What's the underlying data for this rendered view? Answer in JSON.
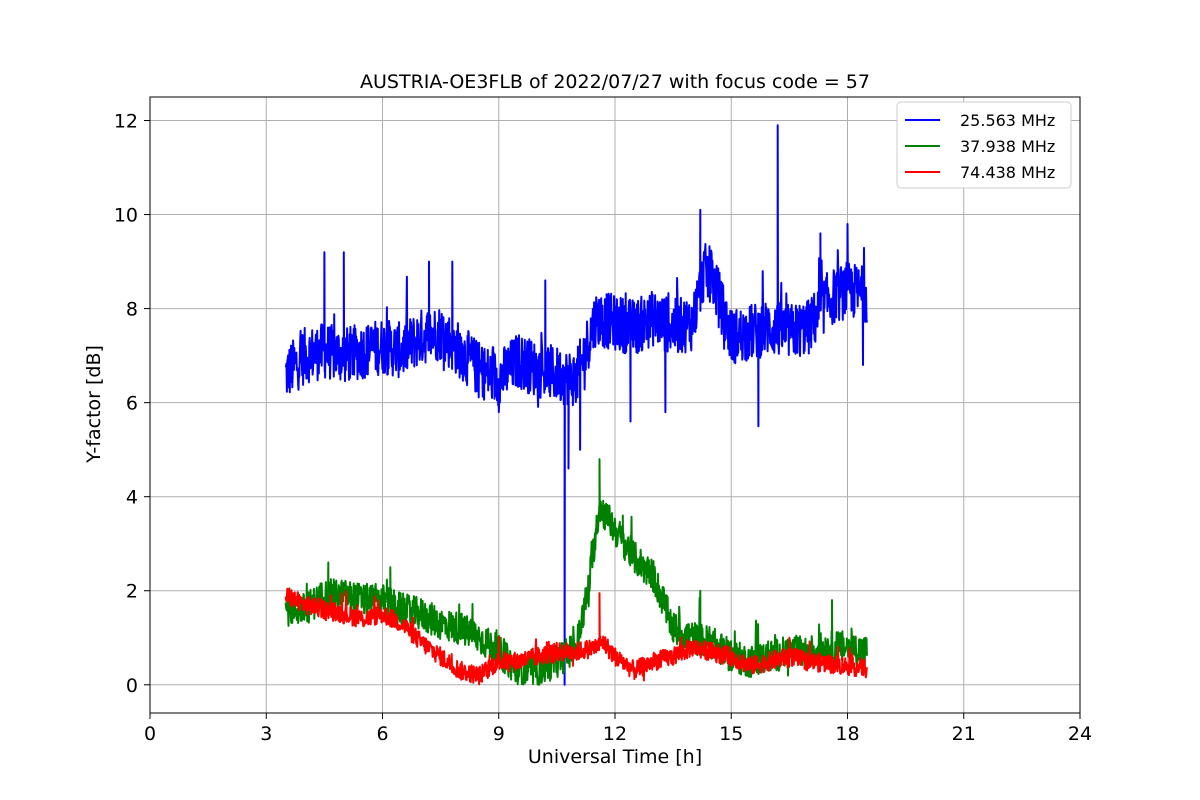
{
  "chart_data": {
    "type": "line",
    "title": "AUSTRIA-OE3FLB of 2022/07/27 with focus code = 57",
    "xlabel": "Universal Time [h]",
    "ylabel": "Y-factor [dB]",
    "xlim": [
      0,
      24
    ],
    "ylim": [
      -0.6,
      12.5
    ],
    "xticks": [
      "0",
      "3",
      "6",
      "9",
      "12",
      "15",
      "18",
      "21",
      "24"
    ],
    "yticks": [
      "0",
      "2",
      "4",
      "6",
      "8",
      "10",
      "12"
    ],
    "grid": true,
    "legend_position": "top-right",
    "series": [
      {
        "name": "25.563 MHz",
        "color": "#0000ff",
        "x": [
          3.5,
          4.0,
          4.5,
          5.0,
          5.5,
          6.0,
          6.5,
          7.0,
          7.5,
          8.0,
          8.5,
          9.0,
          9.5,
          10.0,
          10.5,
          11.0,
          11.5,
          12.0,
          12.5,
          13.0,
          13.5,
          14.0,
          14.3,
          14.5,
          15.0,
          15.5,
          16.0,
          16.5,
          17.0,
          17.5,
          18.0,
          18.5
        ],
        "y": [
          6.6,
          7.0,
          7.1,
          7.0,
          7.1,
          7.2,
          7.1,
          7.4,
          7.5,
          7.1,
          6.7,
          6.5,
          6.9,
          6.7,
          6.6,
          6.5,
          7.8,
          7.7,
          7.6,
          7.8,
          7.6,
          7.7,
          8.8,
          8.7,
          7.4,
          7.5,
          7.6,
          7.5,
          7.6,
          8.2,
          8.4,
          8.3
        ],
        "spikes": [
          {
            "x": 4.5,
            "y": 9.2
          },
          {
            "x": 5.0,
            "y": 9.2
          },
          {
            "x": 7.2,
            "y": 9.0
          },
          {
            "x": 7.8,
            "y": 9.0
          },
          {
            "x": 9.0,
            "y": 5.8
          },
          {
            "x": 10.2,
            "y": 8.6
          },
          {
            "x": 10.7,
            "y": 0.0
          },
          {
            "x": 10.8,
            "y": 4.6
          },
          {
            "x": 11.1,
            "y": 5.0
          },
          {
            "x": 12.4,
            "y": 5.6
          },
          {
            "x": 13.3,
            "y": 5.8
          },
          {
            "x": 14.2,
            "y": 10.1
          },
          {
            "x": 15.7,
            "y": 5.5
          },
          {
            "x": 16.2,
            "y": 11.9
          },
          {
            "x": 17.3,
            "y": 9.6
          },
          {
            "x": 18.0,
            "y": 9.8
          },
          {
            "x": 18.4,
            "y": 6.8
          }
        ],
        "noise": 0.6
      },
      {
        "name": "37.938 MHz",
        "color": "#008000",
        "x": [
          3.5,
          4.0,
          4.5,
          5.0,
          5.5,
          6.0,
          6.5,
          7.0,
          7.5,
          8.0,
          8.5,
          9.0,
          9.5,
          10.0,
          10.5,
          11.0,
          11.3,
          11.6,
          12.0,
          12.5,
          13.0,
          13.5,
          14.0,
          14.5,
          15.0,
          15.5,
          16.0,
          16.5,
          17.0,
          17.5,
          18.0,
          18.5
        ],
        "y": [
          1.6,
          1.6,
          1.9,
          1.9,
          1.8,
          1.8,
          1.6,
          1.5,
          1.3,
          1.2,
          1.0,
          0.7,
          0.3,
          0.3,
          0.5,
          0.8,
          2.0,
          3.8,
          3.3,
          2.7,
          2.3,
          1.2,
          1.0,
          0.9,
          0.6,
          0.5,
          0.6,
          0.7,
          0.7,
          0.8,
          0.8,
          0.7
        ],
        "spikes": [
          {
            "x": 4.6,
            "y": 2.6
          },
          {
            "x": 6.2,
            "y": 2.5
          },
          {
            "x": 11.6,
            "y": 4.8
          },
          {
            "x": 12.2,
            "y": 3.6
          },
          {
            "x": 14.2,
            "y": 2.0
          },
          {
            "x": 17.6,
            "y": 1.8
          }
        ],
        "noise": 0.35
      },
      {
        "name": "74.438 MHz",
        "color": "#ff0000",
        "x": [
          3.5,
          4.0,
          4.5,
          5.0,
          5.5,
          6.0,
          6.5,
          7.0,
          7.5,
          8.0,
          8.5,
          9.0,
          9.5,
          10.0,
          10.5,
          11.0,
          11.5,
          11.7,
          12.0,
          12.5,
          13.0,
          13.5,
          14.0,
          14.5,
          15.0,
          15.5,
          16.0,
          16.5,
          17.0,
          17.5,
          18.0,
          18.5
        ],
        "y": [
          1.9,
          1.7,
          1.6,
          1.5,
          1.4,
          1.5,
          1.3,
          0.9,
          0.6,
          0.3,
          0.2,
          0.5,
          0.5,
          0.6,
          0.7,
          0.7,
          0.8,
          0.9,
          0.6,
          0.3,
          0.5,
          0.6,
          0.8,
          0.7,
          0.6,
          0.4,
          0.5,
          0.6,
          0.5,
          0.45,
          0.4,
          0.35
        ],
        "spikes": [
          {
            "x": 11.6,
            "y": 1.95
          },
          {
            "x": 13.7,
            "y": 1.0
          },
          {
            "x": 16.5,
            "y": 1.0
          }
        ],
        "noise": 0.2
      }
    ]
  }
}
